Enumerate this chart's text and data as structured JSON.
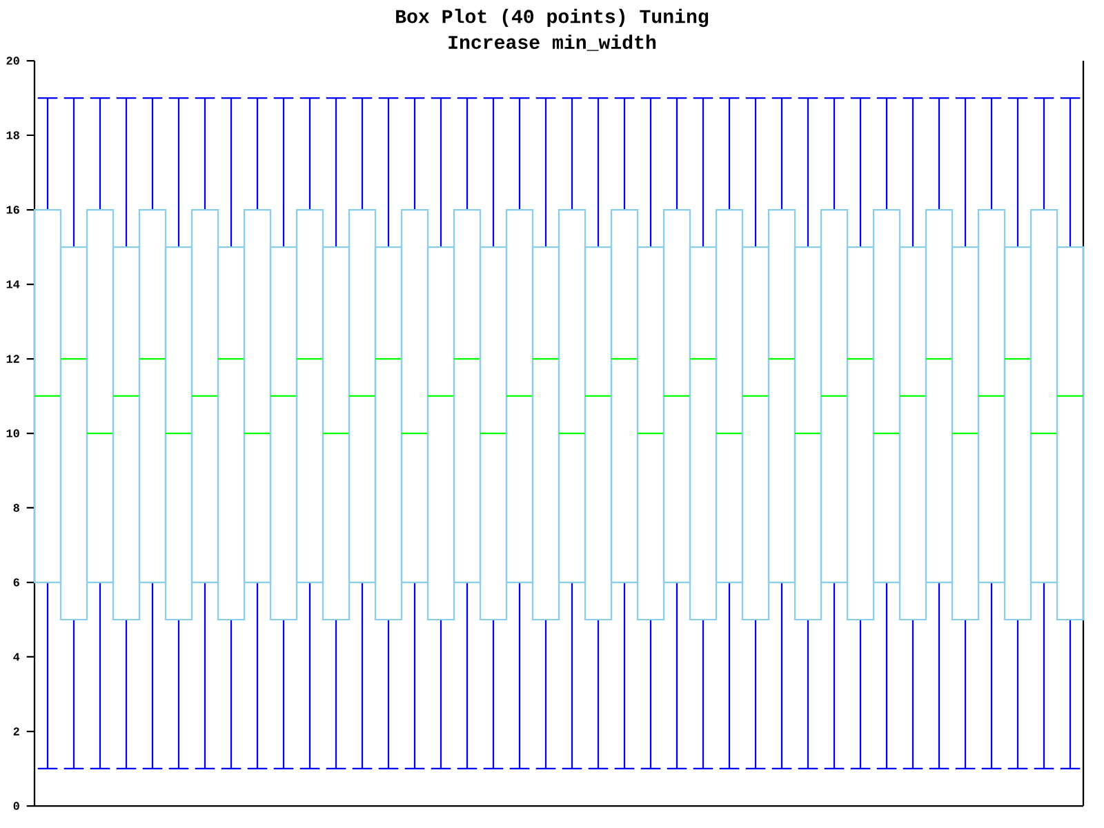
{
  "chart_data": {
    "type": "box",
    "title": "Box Plot (40 points) Tuning",
    "subtitle": "Increase min_width",
    "categories": [
      null,
      null,
      null,
      null,
      null,
      null,
      null,
      null,
      null,
      null,
      null,
      null,
      null,
      null,
      null,
      null,
      null,
      null,
      null,
      null,
      null,
      null,
      null,
      null,
      null,
      null,
      null,
      null,
      null,
      null,
      null,
      null,
      null,
      null,
      null,
      null,
      null,
      null,
      null,
      null
    ],
    "color": "#87ceeb",
    "ylim": [
      0,
      20
    ],
    "yticks": [
      0,
      2,
      4,
      6,
      8,
      10,
      12,
      14,
      16,
      18,
      20
    ],
    "tick_labels": "y",
    "boxes": [
      {
        "low": 1,
        "q1": 6,
        "median": 11,
        "q3": 16,
        "high": 19
      },
      {
        "low": 1,
        "q1": 5,
        "median": 12,
        "q3": 15,
        "high": 19
      },
      {
        "low": 1,
        "q1": 6,
        "median": 10,
        "q3": 16,
        "high": 19
      },
      {
        "low": 1,
        "q1": 5,
        "median": 11,
        "q3": 15,
        "high": 19
      },
      {
        "low": 1,
        "q1": 6,
        "median": 12,
        "q3": 16,
        "high": 19
      },
      {
        "low": 1,
        "q1": 5,
        "median": 10,
        "q3": 15,
        "high": 19
      },
      {
        "low": 1,
        "q1": 6,
        "median": 11,
        "q3": 16,
        "high": 19
      },
      {
        "low": 1,
        "q1": 5,
        "median": 12,
        "q3": 15,
        "high": 19
      },
      {
        "low": 1,
        "q1": 6,
        "median": 10,
        "q3": 16,
        "high": 19
      },
      {
        "low": 1,
        "q1": 5,
        "median": 11,
        "q3": 15,
        "high": 19
      },
      {
        "low": 1,
        "q1": 6,
        "median": 12,
        "q3": 16,
        "high": 19
      },
      {
        "low": 1,
        "q1": 5,
        "median": 10,
        "q3": 15,
        "high": 19
      },
      {
        "low": 1,
        "q1": 6,
        "median": 11,
        "q3": 16,
        "high": 19
      },
      {
        "low": 1,
        "q1": 5,
        "median": 12,
        "q3": 15,
        "high": 19
      },
      {
        "low": 1,
        "q1": 6,
        "median": 10,
        "q3": 16,
        "high": 19
      },
      {
        "low": 1,
        "q1": 5,
        "median": 11,
        "q3": 15,
        "high": 19
      },
      {
        "low": 1,
        "q1": 6,
        "median": 12,
        "q3": 16,
        "high": 19
      },
      {
        "low": 1,
        "q1": 5,
        "median": 10,
        "q3": 15,
        "high": 19
      },
      {
        "low": 1,
        "q1": 6,
        "median": 11,
        "q3": 16,
        "high": 19
      },
      {
        "low": 1,
        "q1": 5,
        "median": 12,
        "q3": 15,
        "high": 19
      },
      {
        "low": 1,
        "q1": 6,
        "median": 10,
        "q3": 16,
        "high": 19
      },
      {
        "low": 1,
        "q1": 5,
        "median": 11,
        "q3": 15,
        "high": 19
      },
      {
        "low": 1,
        "q1": 6,
        "median": 12,
        "q3": 16,
        "high": 19
      },
      {
        "low": 1,
        "q1": 5,
        "median": 10,
        "q3": 15,
        "high": 19
      },
      {
        "low": 1,
        "q1": 6,
        "median": 11,
        "q3": 16,
        "high": 19
      },
      {
        "low": 1,
        "q1": 5,
        "median": 12,
        "q3": 15,
        "high": 19
      },
      {
        "low": 1,
        "q1": 6,
        "median": 10,
        "q3": 16,
        "high": 19
      },
      {
        "low": 1,
        "q1": 5,
        "median": 11,
        "q3": 15,
        "high": 19
      },
      {
        "low": 1,
        "q1": 6,
        "median": 12,
        "q3": 16,
        "high": 19
      },
      {
        "low": 1,
        "q1": 5,
        "median": 10,
        "q3": 15,
        "high": 19
      },
      {
        "low": 1,
        "q1": 6,
        "median": 11,
        "q3": 16,
        "high": 19
      },
      {
        "low": 1,
        "q1": 5,
        "median": 12,
        "q3": 15,
        "high": 19
      },
      {
        "low": 1,
        "q1": 6,
        "median": 10,
        "q3": 16,
        "high": 19
      },
      {
        "low": 1,
        "q1": 5,
        "median": 11,
        "q3": 15,
        "high": 19
      },
      {
        "low": 1,
        "q1": 6,
        "median": 12,
        "q3": 16,
        "high": 19
      },
      {
        "low": 1,
        "q1": 5,
        "median": 10,
        "q3": 15,
        "high": 19
      },
      {
        "low": 1,
        "q1": 6,
        "median": 11,
        "q3": 16,
        "high": 19
      },
      {
        "low": 1,
        "q1": 5,
        "median": 12,
        "q3": 15,
        "high": 19
      },
      {
        "low": 1,
        "q1": 6,
        "median": 10,
        "q3": 16,
        "high": 19
      },
      {
        "low": 1,
        "q1": 5,
        "median": 11,
        "q3": 15,
        "high": 19
      }
    ]
  }
}
